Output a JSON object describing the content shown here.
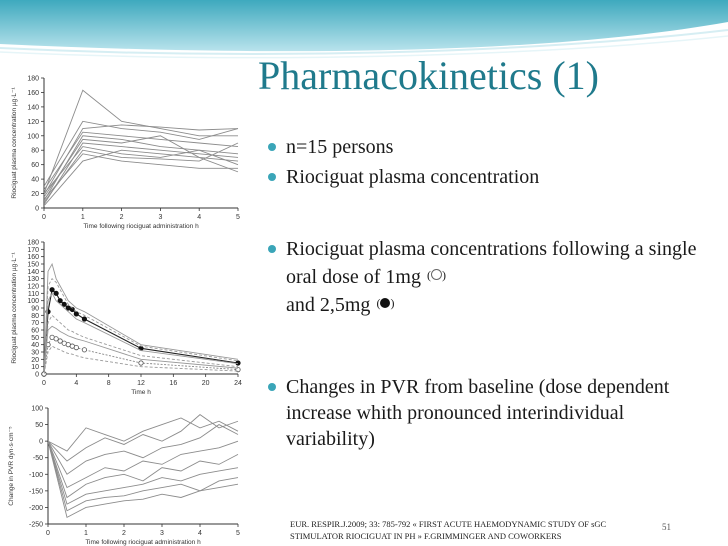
{
  "slide": {
    "title": "Pharmacokinetics (1)",
    "bullets": [
      {
        "text": "n=15 persons"
      },
      {
        "text": "Riociguat plasma concentration"
      },
      {
        "text": "Riociguat plasma concentrations following a single oral dose of 1mg"
      },
      {
        "text": "and 2,5mg"
      },
      {
        "text": "Changes in PVR from baseline (dose dependent increase whith pronounced interindividual variability)"
      }
    ],
    "footer": "EUR. RESPIR.J.2009; 33: 785-792 « FIRST ACUTE HAEMODYNAMIC STUDY OF sGC STIMULATOR RIOCIGUAT IN PH »  F.GRIMMINGER AND COWORKERS",
    "slide_number": "51",
    "colors": {
      "title": "#1f7a8c",
      "bullet": "#3aa5b8",
      "banner": "#4cb3c6"
    }
  },
  "chart_data": [
    {
      "type": "line",
      "ylabel": "Riociguat plasma concentration µg·L⁻¹",
      "xlabel": "Time following riociguat administration h",
      "x": [
        0,
        1,
        2,
        3,
        4,
        5
      ],
      "xticks": [
        "0",
        "1",
        "2",
        "3",
        "4",
        "5"
      ],
      "yticks": [
        "0",
        "20",
        "40",
        "60",
        "80",
        "100",
        "120",
        "140",
        "160",
        "180"
      ],
      "ylim": [
        0,
        180
      ],
      "grid": false,
      "series": [
        {
          "values": [
            20,
            163,
            120,
            110,
            100,
            100
          ]
        },
        {
          "values": [
            30,
            120,
            110,
            105,
            95,
            110
          ]
        },
        {
          "values": [
            18,
            110,
            115,
            112,
            108,
            110
          ]
        },
        {
          "values": [
            25,
            105,
            100,
            95,
            90,
            85
          ]
        },
        {
          "values": [
            10,
            100,
            95,
            85,
            80,
            75
          ]
        },
        {
          "values": [
            15,
            95,
            90,
            100,
            70,
            65
          ]
        },
        {
          "values": [
            5,
            90,
            85,
            80,
            75,
            70
          ]
        },
        {
          "values": [
            20,
            85,
            75,
            70,
            80,
            60
          ]
        },
        {
          "values": [
            8,
            80,
            70,
            68,
            65,
            90
          ]
        },
        {
          "values": [
            12,
            75,
            65,
            60,
            55,
            55
          ]
        },
        {
          "values": [
            3,
            65,
            80,
            75,
            70,
            50
          ]
        }
      ]
    },
    {
      "type": "line",
      "ylabel": "Riociguat plasma concentration µg·L⁻¹",
      "xlabel": "Time h",
      "x": [
        0,
        0.5,
        1,
        1.5,
        2,
        2.5,
        3,
        3.5,
        4,
        5,
        12,
        24
      ],
      "xticks": [
        "0",
        "4",
        "8",
        "12",
        "16",
        "20",
        "24"
      ],
      "yticks": [
        "0",
        "10",
        "20",
        "30",
        "40",
        "50",
        "60",
        "70",
        "80",
        "90",
        "100",
        "110",
        "120",
        "130",
        "140",
        "150",
        "160",
        "170",
        "180"
      ],
      "ylim": [
        0,
        180
      ],
      "grid": false,
      "series": [
        {
          "name": "2,5mg",
          "values": [
            0,
            85,
            115,
            110,
            100,
            95,
            90,
            88,
            82,
            75,
            35,
            15
          ]
        },
        {
          "name": "1mg",
          "values": [
            0,
            40,
            50,
            48,
            45,
            42,
            40,
            38,
            36,
            33,
            15,
            6
          ]
        },
        {
          "values": [
            0,
            140,
            150,
            130,
            120,
            110,
            100,
            95,
            90,
            85,
            40,
            20
          ]
        },
        {
          "values": [
            0,
            120,
            130,
            125,
            115,
            105,
            95,
            90,
            85,
            80,
            38,
            18
          ]
        },
        {
          "values": [
            0,
            100,
            110,
            100,
            95,
            90,
            85,
            80,
            75,
            70,
            32,
            14
          ]
        },
        {
          "values": [
            0,
            70,
            80,
            75,
            70,
            65,
            60,
            58,
            55,
            50,
            25,
            10
          ]
        },
        {
          "values": [
            0,
            60,
            65,
            62,
            58,
            55,
            52,
            50,
            48,
            45,
            20,
            8
          ]
        },
        {
          "values": [
            0,
            30,
            38,
            35,
            33,
            30,
            28,
            27,
            25,
            22,
            10,
            4
          ]
        }
      ]
    },
    {
      "type": "line",
      "ylabel": "Change in PVR dyn·s·cm⁻⁵",
      "xlabel": "Time following riociguat administration h",
      "x": [
        0,
        0.5,
        1,
        1.5,
        2,
        2.5,
        3,
        3.5,
        4,
        4.5,
        5
      ],
      "xticks": [
        "0",
        "1",
        "2",
        "3",
        "4",
        "5"
      ],
      "yticks": [
        "-250",
        "-200",
        "-150",
        "-100",
        "-50",
        "0",
        "50",
        "100"
      ],
      "ylim": [
        -250,
        100
      ],
      "grid": false,
      "series": [
        {
          "values": [
            0,
            -30,
            40,
            20,
            0,
            30,
            50,
            70,
            40,
            60,
            30
          ]
        },
        {
          "values": [
            0,
            -60,
            -20,
            10,
            -10,
            20,
            0,
            30,
            80,
            40,
            60
          ]
        },
        {
          "values": [
            0,
            -100,
            -60,
            -40,
            -30,
            -50,
            -20,
            -10,
            10,
            50,
            20
          ]
        },
        {
          "values": [
            0,
            -140,
            -110,
            -80,
            -90,
            -60,
            -70,
            -40,
            -30,
            -20,
            0
          ]
        },
        {
          "values": [
            0,
            -170,
            -130,
            -110,
            -100,
            -120,
            -80,
            -90,
            -60,
            -70,
            -40
          ]
        },
        {
          "values": [
            0,
            -190,
            -160,
            -150,
            -140,
            -130,
            -110,
            -120,
            -100,
            -90,
            -80
          ]
        },
        {
          "values": [
            0,
            -210,
            -180,
            -170,
            -165,
            -150,
            -140,
            -130,
            -150,
            -120,
            -110
          ]
        },
        {
          "values": [
            0,
            -230,
            -200,
            -190,
            -180,
            -175,
            -160,
            -170,
            -150,
            -140,
            -130
          ]
        }
      ]
    }
  ]
}
